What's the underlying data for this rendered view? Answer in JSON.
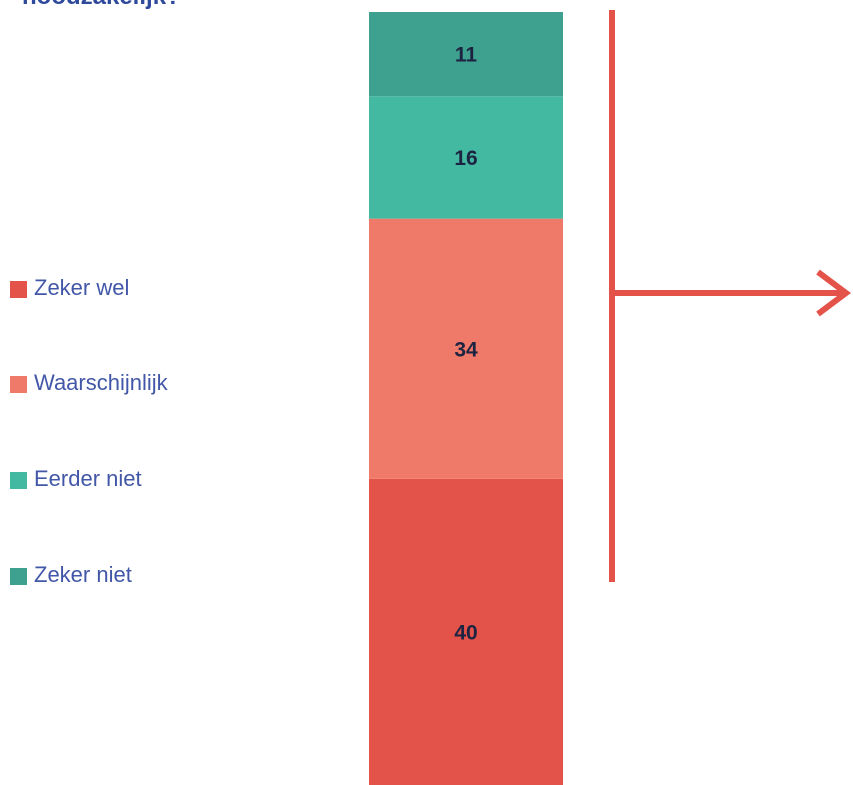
{
  "chart_data": {
    "type": "bar",
    "stacked": true,
    "title": "noodzakelijk?",
    "categories": [
      null
    ],
    "series": [
      {
        "name": "Zeker wel",
        "color": "#e4534a",
        "values": [
          40
        ]
      },
      {
        "name": "Waarschijnlijk",
        "color": "#ef7a69",
        "values": [
          34
        ]
      },
      {
        "name": "Eerder niet",
        "color": "#43b9a2",
        "values": [
          16
        ]
      },
      {
        "name": "Zeker niet",
        "color": "#3ea08f",
        "values": [
          11
        ]
      }
    ],
    "ylim": [
      0,
      101
    ],
    "legend": "left"
  }
}
